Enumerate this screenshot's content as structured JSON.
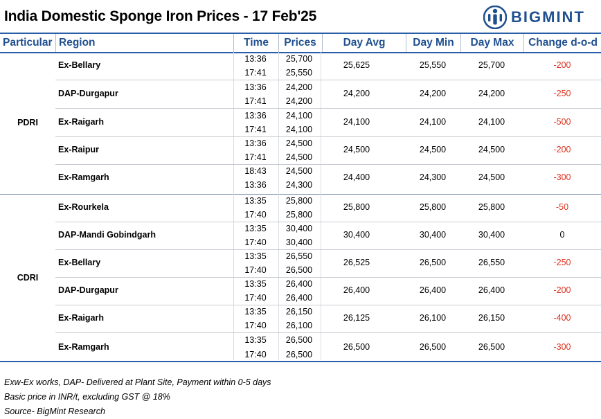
{
  "title": "India Domestic Sponge Iron Prices - 17 Feb'25",
  "logo": {
    "text": "BIGMINT",
    "icon": "bigmint-person-icon",
    "color": "#1f4f8f"
  },
  "columns": {
    "particular": "Particular",
    "region": "Region",
    "time": "Time",
    "prices": "Prices",
    "day_avg": "Day Avg",
    "day_min": "Day Min",
    "day_max": "Day Max",
    "change": "Change d-o-d"
  },
  "colors": {
    "header": "#1f4f8f",
    "rule": "#2a5da8",
    "negative": "#e0301e"
  },
  "sections": [
    {
      "particular": "PDRI",
      "rows": [
        {
          "region": "Ex-Bellary",
          "time1": "13:36",
          "time2": "17:41",
          "price1": "25,700",
          "price2": "25,550",
          "avg": "25,625",
          "min": "25,550",
          "max": "25,700",
          "change": "-200"
        },
        {
          "region": "DAP-Durgapur",
          "time1": "13:36",
          "time2": "17:41",
          "price1": "24,200",
          "price2": "24,200",
          "avg": "24,200",
          "min": "24,200",
          "max": "24,200",
          "change": "-250"
        },
        {
          "region": "Ex-Raigarh",
          "time1": "13:36",
          "time2": "17:41",
          "price1": "24,100",
          "price2": "24,100",
          "avg": "24,100",
          "min": "24,100",
          "max": "24,100",
          "change": "-500"
        },
        {
          "region": "Ex-Raipur",
          "time1": "13:36",
          "time2": "17:41",
          "price1": "24,500",
          "price2": "24,500",
          "avg": "24,500",
          "min": "24,500",
          "max": "24,500",
          "change": "-200"
        },
        {
          "region": "Ex-Ramgarh",
          "time1": "18:43",
          "time2": "13:36",
          "price1": "24,500",
          "price2": "24,300",
          "avg": "24,400",
          "min": "24,300",
          "max": "24,500",
          "change": "-300"
        }
      ]
    },
    {
      "particular": "CDRI",
      "rows": [
        {
          "region": "Ex-Rourkela",
          "time1": "13:35",
          "time2": "17:40",
          "price1": "25,800",
          "price2": "25,800",
          "avg": "25,800",
          "min": "25,800",
          "max": "25,800",
          "change": "-50"
        },
        {
          "region": "DAP-Mandi Gobindgarh",
          "time1": "13:35",
          "time2": "17:40",
          "price1": "30,400",
          "price2": "30,400",
          "avg": "30,400",
          "min": "30,400",
          "max": "30,400",
          "change": "0"
        },
        {
          "region": "Ex-Bellary",
          "time1": "13:35",
          "time2": "17:40",
          "price1": "26,550",
          "price2": "26,500",
          "avg": "26,525",
          "min": "26,500",
          "max": "26,550",
          "change": "-250"
        },
        {
          "region": "DAP-Durgapur",
          "time1": "13:35",
          "time2": "17:40",
          "price1": "26,400",
          "price2": "26,400",
          "avg": "26,400",
          "min": "26,400",
          "max": "26,400",
          "change": "-200"
        },
        {
          "region": "Ex-Raigarh",
          "time1": "13:35",
          "time2": "17:40",
          "price1": "26,150",
          "price2": "26,100",
          "avg": "26,125",
          "min": "26,100",
          "max": "26,150",
          "change": "-400"
        },
        {
          "region": "Ex-Ramgarh",
          "time1": "13:35",
          "time2": "17:40",
          "price1": "26,500",
          "price2": "26,500",
          "avg": "26,500",
          "min": "26,500",
          "max": "26,500",
          "change": "-300"
        }
      ]
    }
  ],
  "notes": [
    "Exw-Ex works, DAP- Delivered at Plant Site, Payment within 0-5 days",
    "Basic price in INR/t, excluding GST @ 18%",
    "Source- BigMint Research"
  ]
}
